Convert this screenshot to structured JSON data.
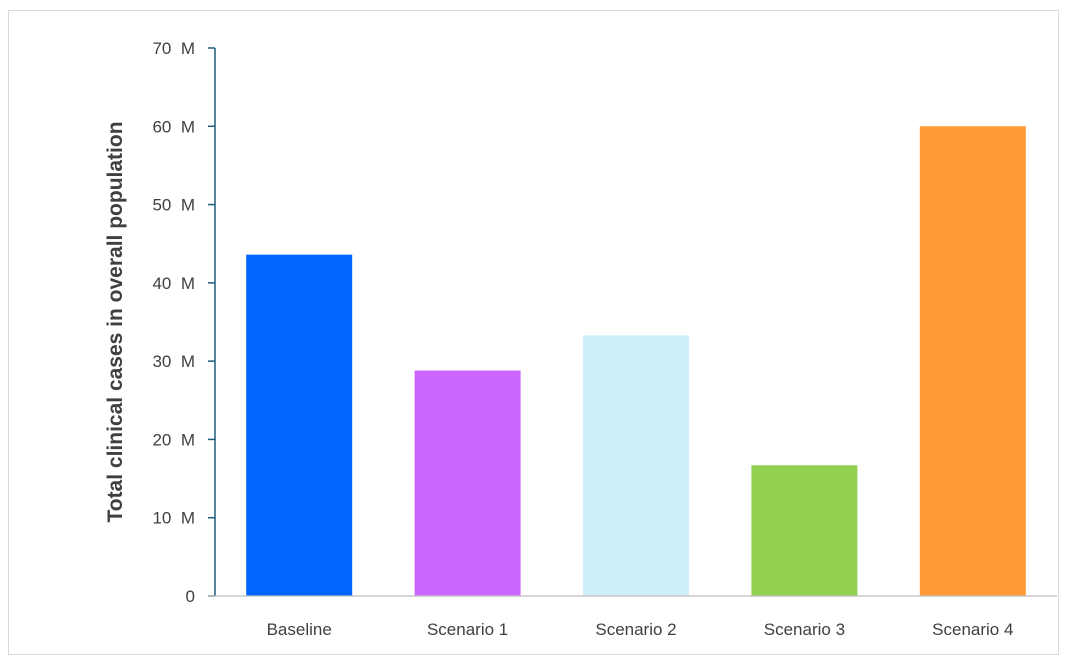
{
  "chart_data": {
    "type": "bar",
    "title": "",
    "xlabel": "",
    "ylabel": "Total clinical cases in overall population",
    "categories": [
      "Baseline",
      "Scenario 1",
      "Scenario 2",
      "Scenario 3",
      "Scenario 4"
    ],
    "values": [
      43.6,
      28.8,
      33.3,
      16.7,
      60.0
    ],
    "value_unit": "M",
    "colors": [
      "#0066ff",
      "#cc66ff",
      "#cceefa",
      "#92d050",
      "#ff9933"
    ],
    "ylim": [
      0,
      70
    ],
    "yticks": [
      {
        "value": 0,
        "label": "0"
      },
      {
        "value": 10,
        "label": "10  M"
      },
      {
        "value": 20,
        "label": "20  M"
      },
      {
        "value": 30,
        "label": "30  M"
      },
      {
        "value": 40,
        "label": "40  M"
      },
      {
        "value": 50,
        "label": "50  M"
      },
      {
        "value": 60,
        "label": "60  M"
      },
      {
        "value": 70,
        "label": "70  M"
      }
    ],
    "grid": false,
    "legend": "none",
    "axis_color": "#1f5b7a"
  }
}
